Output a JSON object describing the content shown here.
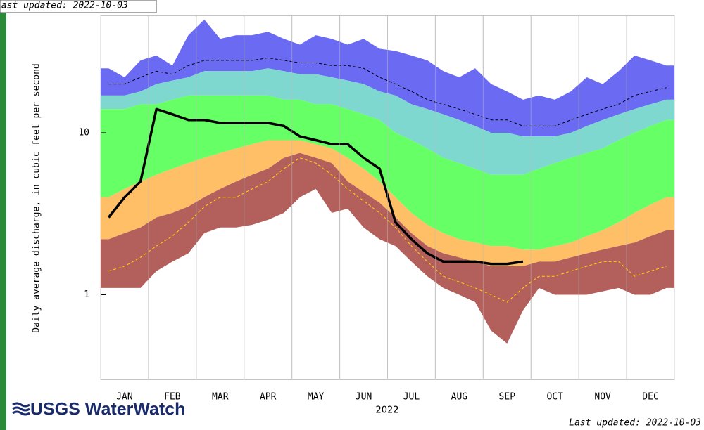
{
  "header": {
    "stamp": "Last updated: 2022-10-03",
    "logo": "USGS WaterWatch"
  },
  "chart_data": {
    "type": "band",
    "y_label": "Daily average discharge, in cubic feet per second",
    "x_label": "2022",
    "categories": [
      null,
      "JAN",
      null,
      null,
      "FEB",
      null,
      null,
      "MAR",
      null,
      null,
      "APR",
      null,
      null,
      "MAY",
      null,
      null,
      "JUN",
      null,
      null,
      "JUL",
      null,
      null,
      "AUG",
      null,
      null,
      "SEP",
      null,
      null,
      "OCT",
      null,
      null,
      "NOV",
      null,
      null,
      "DEC",
      null
    ],
    "log_y": true,
    "ylim": [
      0.3,
      53
    ],
    "yticks": [
      1,
      10
    ],
    "series": [
      {
        "color": "#6a6af2",
        "band": true,
        "values": [
          25,
          22,
          28,
          30,
          26,
          40,
          50,
          38,
          40,
          40,
          42,
          38,
          35,
          40,
          38,
          35,
          38,
          33,
          32,
          30,
          28,
          24,
          22,
          25,
          20,
          18,
          16,
          17,
          16,
          18,
          22,
          20,
          24,
          30,
          28,
          26
        ]
      },
      {
        "color": "#7fd8d0",
        "band": true,
        "values": [
          17,
          17,
          18,
          20,
          21,
          22,
          24,
          24,
          24,
          24,
          25,
          24,
          23,
          23,
          22,
          21,
          20,
          18,
          17,
          15,
          14,
          13,
          12,
          11,
          10,
          10,
          9.5,
          9.5,
          9.5,
          10,
          11,
          12,
          13,
          14,
          15,
          16
        ]
      },
      {
        "color": "#66ff66",
        "band": true,
        "values": [
          14,
          14,
          15,
          15,
          16,
          17,
          17,
          17,
          17,
          17,
          17,
          16,
          16,
          15,
          15,
          14,
          13,
          12,
          10,
          9,
          8,
          7,
          6.5,
          6,
          5.5,
          5.5,
          5.5,
          6,
          6.5,
          7,
          7.5,
          8,
          9,
          10,
          11,
          12
        ]
      },
      {
        "color": "#ffbf66",
        "band": true,
        "values": [
          4,
          4.5,
          5,
          5.5,
          6,
          6.5,
          7,
          7.5,
          8,
          8.5,
          9,
          9,
          9,
          8.5,
          8,
          7,
          6,
          5,
          4,
          3.2,
          2.7,
          2.4,
          2.2,
          2.1,
          2,
          2,
          1.9,
          1.9,
          2,
          2.1,
          2.3,
          2.5,
          2.8,
          3.2,
          3.6,
          4
        ]
      },
      {
        "color": "#b3605c",
        "band": true,
        "values": [
          2.2,
          2.4,
          2.6,
          3,
          3.2,
          3.5,
          4,
          4.5,
          5,
          5.5,
          6,
          7,
          7.5,
          7,
          6.5,
          5,
          4.3,
          3.7,
          3,
          2.4,
          2,
          1.8,
          1.7,
          1.6,
          1.5,
          1.5,
          1.5,
          1.6,
          1.6,
          1.7,
          1.8,
          1.9,
          2,
          2.1,
          2.3,
          2.5
        ]
      },
      {
        "band": false,
        "values": [
          1.1,
          1.1,
          1.1,
          1.4,
          1.6,
          1.8,
          2.4,
          2.6,
          2.6,
          2.7,
          2.9,
          3.2,
          4,
          4.5,
          3.2,
          3.4,
          2.6,
          2.2,
          2,
          1.6,
          1.3,
          1.1,
          1,
          0.9,
          0.6,
          0.5,
          0.8,
          1.1,
          1,
          1,
          1,
          1.05,
          1.1,
          1,
          1,
          1.1
        ]
      },
      {
        "color": "#000000",
        "dash": true,
        "width": 1,
        "values": [
          20,
          20,
          22,
          24,
          23,
          26,
          28,
          28,
          28,
          28,
          29,
          28,
          27,
          27,
          26,
          26,
          25,
          22,
          20,
          18,
          16,
          15,
          14,
          13,
          12,
          12,
          11,
          11,
          11,
          12,
          13,
          14,
          15,
          17,
          18,
          19
        ]
      },
      {
        "color": "#ffd700",
        "dash": true,
        "width": 1,
        "values": [
          1.4,
          1.5,
          1.7,
          2,
          2.3,
          2.8,
          3.5,
          4,
          4,
          4.5,
          5,
          6,
          7,
          6.5,
          5.5,
          4.5,
          3.8,
          3.2,
          2.6,
          2,
          1.6,
          1.3,
          1.2,
          1.1,
          1,
          0.9,
          1.1,
          1.3,
          1.3,
          1.4,
          1.5,
          1.6,
          1.6,
          1.3,
          1.4,
          1.5
        ]
      },
      {
        "color": "#000000",
        "dash": false,
        "width": 3.5,
        "values": [
          3,
          4,
          5,
          14,
          13,
          12,
          12,
          11.5,
          11.5,
          11.5,
          11.5,
          11,
          9.5,
          9,
          8.5,
          8.5,
          7,
          6,
          2.8,
          2.2,
          1.8,
          1.6,
          1.6,
          1.6,
          1.55,
          1.55,
          1.6,
          null,
          null,
          null,
          null,
          null,
          null,
          null,
          null,
          null
        ]
      }
    ]
  }
}
